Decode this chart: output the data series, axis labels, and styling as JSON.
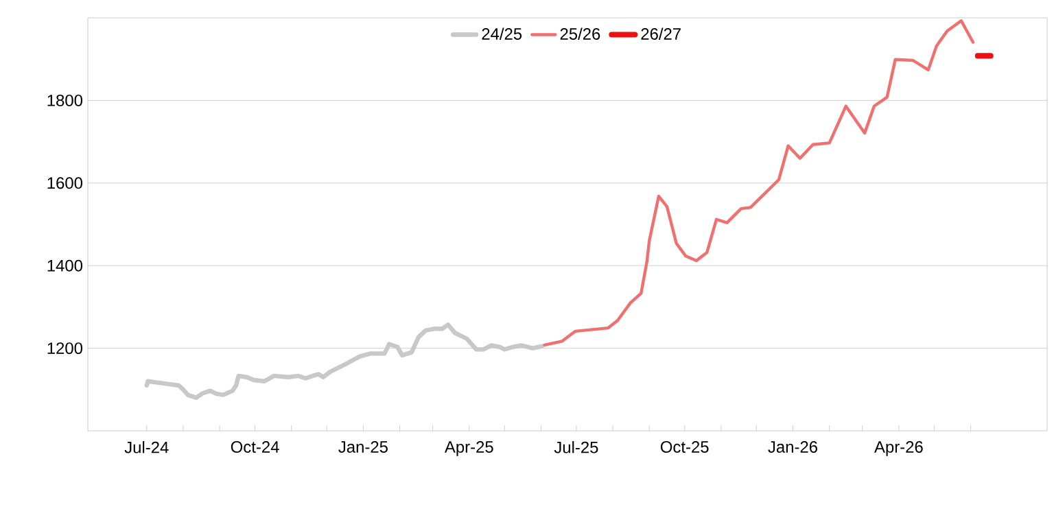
{
  "chart_data": {
    "type": "line",
    "xlim": [
      "2024-05-12",
      "2026-08-05"
    ],
    "xticks": [
      {
        "value": "2024-07-01",
        "label": "Jul-24"
      },
      {
        "value": "2024-08-01",
        "label": null
      },
      {
        "value": "2024-09-01",
        "label": null
      },
      {
        "value": "2024-10-01",
        "label": "Oct-24"
      },
      {
        "value": "2024-11-01",
        "label": null
      },
      {
        "value": "2024-12-01",
        "label": null
      },
      {
        "value": "2025-01-01",
        "label": "Jan-25"
      },
      {
        "value": "2025-02-01",
        "label": null
      },
      {
        "value": "2025-03-01",
        "label": null
      },
      {
        "value": "2025-04-01",
        "label": "Apr-25"
      },
      {
        "value": "2025-05-01",
        "label": null
      },
      {
        "value": "2025-06-01",
        "label": null
      },
      {
        "value": "2025-07-01",
        "label": "Jul-25"
      },
      {
        "value": "2025-08-01",
        "label": null
      },
      {
        "value": "2025-09-01",
        "label": null
      },
      {
        "value": "2025-10-01",
        "label": "Oct-25"
      },
      {
        "value": "2025-11-01",
        "label": null
      },
      {
        "value": "2025-12-01",
        "label": null
      },
      {
        "value": "2026-01-01",
        "label": "Jan-26"
      },
      {
        "value": "2026-02-01",
        "label": null
      },
      {
        "value": "2026-03-01",
        "label": null
      },
      {
        "value": "2026-04-01",
        "label": "Apr-26"
      },
      {
        "value": "2026-05-01",
        "label": null
      },
      {
        "value": "2026-06-01",
        "label": null
      }
    ],
    "ylim": [
      1000,
      2000
    ],
    "yticks": [
      1200,
      1400,
      1600,
      1800
    ],
    "grid": "y",
    "legend": "top",
    "marker": "none",
    "line_style": "solid",
    "series": [
      {
        "name": "24/25",
        "color": "#c8c8c8",
        "x": [
          "2024-07-01",
          "2024-07-02",
          "2024-07-10",
          "2024-07-28",
          "2024-07-31",
          "2024-08-05",
          "2024-08-12",
          "2024-08-17",
          "2024-08-24",
          "2024-08-29",
          "2024-09-04",
          "2024-09-12",
          "2024-09-15",
          "2024-09-17",
          "2024-09-24",
          "2024-09-30",
          "2024-10-09",
          "2024-10-17",
          "2024-10-29",
          "2024-11-07",
          "2024-11-13",
          "2024-11-19",
          "2024-11-24",
          "2024-11-28",
          "2024-12-04",
          "2024-12-18",
          "2024-12-29",
          "2025-01-07",
          "2025-01-19",
          "2025-01-23",
          "2025-01-30",
          "2025-02-03",
          "2025-02-11",
          "2025-02-17",
          "2025-02-23",
          "2025-03-02",
          "2025-03-09",
          "2025-03-14",
          "2025-03-20",
          "2025-03-30",
          "2025-04-07",
          "2025-04-13",
          "2025-04-20",
          "2025-04-27",
          "2025-05-01",
          "2025-05-08",
          "2025-05-15",
          "2025-05-25",
          "2025-06-02"
        ],
        "values": [
          1110,
          1120,
          1117,
          1110,
          1103,
          1087,
          1080,
          1090,
          1097,
          1090,
          1087,
          1097,
          1110,
          1133,
          1130,
          1123,
          1120,
          1133,
          1130,
          1133,
          1127,
          1133,
          1137,
          1130,
          1143,
          1163,
          1180,
          1187,
          1187,
          1210,
          1203,
          1183,
          1190,
          1227,
          1243,
          1247,
          1247,
          1257,
          1237,
          1223,
          1197,
          1197,
          1207,
          1203,
          1197,
          1203,
          1207,
          1200,
          1205
        ]
      },
      {
        "name": "25/26",
        "color": "#f07070",
        "x": [
          "2025-06-04",
          "2025-06-19",
          "2025-06-30",
          "2025-07-28",
          "2025-08-05",
          "2025-08-16",
          "2025-08-25",
          "2025-08-30",
          "2025-09-01",
          "2025-09-09",
          "2025-09-16",
          "2025-09-24",
          "2025-10-02",
          "2025-10-11",
          "2025-10-20",
          "2025-10-28",
          "2025-11-06",
          "2025-11-18",
          "2025-11-26",
          "2025-12-20",
          "2025-12-28",
          "2026-01-07",
          "2026-01-18",
          "2026-02-01",
          "2026-02-15",
          "2026-03-03",
          "2026-03-11",
          "2026-03-22",
          "2026-03-29",
          "2026-04-13",
          "2026-04-26",
          "2026-05-03",
          "2026-05-12",
          "2026-05-24",
          "2026-06-03"
        ],
        "values": [
          1208,
          1217,
          1241,
          1249,
          1267,
          1310,
          1333,
          1410,
          1460,
          1568,
          1543,
          1454,
          1423,
          1412,
          1432,
          1512,
          1504,
          1538,
          1541,
          1608,
          1690,
          1660,
          1693,
          1697,
          1786,
          1721,
          1786,
          1808,
          1899,
          1897,
          1874,
          1932,
          1968,
          1993,
          1941
        ]
      },
      {
        "name": "26/27",
        "color": "#ee1111",
        "x": [
          "2026-06-07",
          "2026-06-18"
        ],
        "values": [
          1908,
          1908
        ]
      }
    ]
  }
}
